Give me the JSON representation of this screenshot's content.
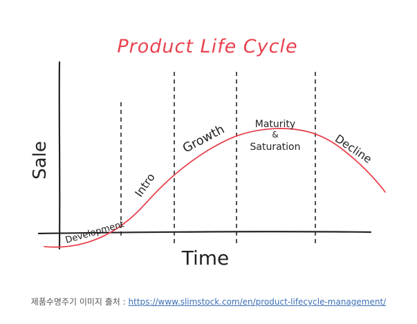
{
  "diagram": {
    "title": "Product Life Cycle",
    "y_axis_label": "Sale",
    "x_axis_label": "Time",
    "stages": {
      "development": "Development",
      "intro": "Intro",
      "growth": "Growth",
      "maturity_line1": "Maturity",
      "maturity_line2": "&",
      "maturity_line3": "Saturation",
      "decline": "Decline"
    },
    "colors": {
      "title": "#e8424f",
      "curve": "#e8424f",
      "ink": "#222222"
    }
  },
  "caption": {
    "prefix": "제품수명주기 이미지 출처 : ",
    "link_text": "https://www.slimstock.com/en/product-lifecycle-management/"
  }
}
